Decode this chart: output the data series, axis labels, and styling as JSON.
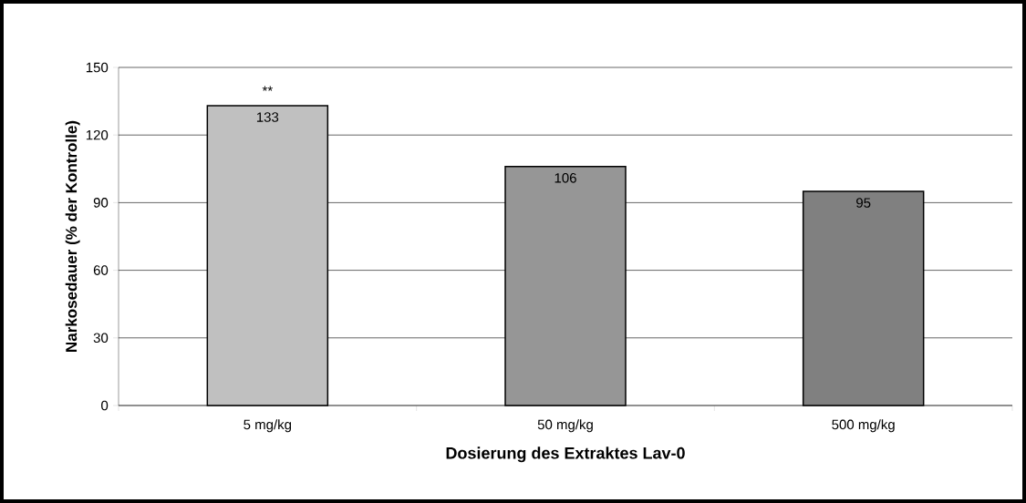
{
  "chart_data": {
    "type": "bar",
    "xlabel": "Dosierung des Extraktes Lav-0",
    "ylabel": "Narkosedauer (% der Kontrolle)",
    "categories": [
      "5 mg/kg",
      "50 mg/kg",
      "500 mg/kg"
    ],
    "values": [
      133,
      106,
      95
    ],
    "colors": [
      "#c0c0c0",
      "#969696",
      "#808080"
    ],
    "ylim": [
      0,
      150
    ],
    "yticks": [
      0,
      30,
      60,
      90,
      120,
      150
    ],
    "grid": "y",
    "data_labels": true,
    "annotations": [
      "**"
    ]
  }
}
